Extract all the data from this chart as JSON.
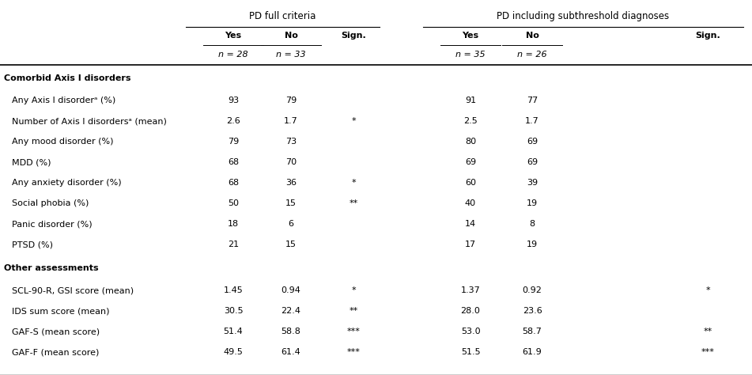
{
  "col_headers": [
    "Yes",
    "No",
    "Sign.",
    "Yes",
    "No",
    "Sign."
  ],
  "col_subheaders": [
    "n = 28",
    "n = 33",
    "",
    "n = 35",
    "n = 26",
    ""
  ],
  "group1_label": "PD full criteria",
  "group2_label": "PD including subthreshold diagnoses",
  "sections": [
    {
      "header": "Comorbid Axis I disorders",
      "rows": [
        {
          "label": "Any Axis I disorderᵃ (%)",
          "vals": [
            "93",
            "79",
            "",
            "91",
            "77",
            ""
          ]
        },
        {
          "label": "Number of Axis I disordersᵃ (mean)",
          "vals": [
            "2.6",
            "1.7",
            "*",
            "2.5",
            "1.7",
            ""
          ]
        },
        {
          "label": "Any mood disorder (%)",
          "vals": [
            "79",
            "73",
            "",
            "80",
            "69",
            ""
          ]
        },
        {
          "label": "MDD (%)",
          "vals": [
            "68",
            "70",
            "",
            "69",
            "69",
            ""
          ]
        },
        {
          "label": "Any anxiety disorder (%)",
          "vals": [
            "68",
            "36",
            "*",
            "60",
            "39",
            ""
          ]
        },
        {
          "label": "Social phobia (%)",
          "vals": [
            "50",
            "15",
            "**",
            "40",
            "19",
            ""
          ]
        },
        {
          "label": "Panic disorder (%)",
          "vals": [
            "18",
            "6",
            "",
            "14",
            "8",
            ""
          ]
        },
        {
          "label": "PTSD (%)",
          "vals": [
            "21",
            "15",
            "",
            "17",
            "19",
            ""
          ]
        }
      ]
    },
    {
      "header": "Other assessments",
      "rows": [
        {
          "label": "SCL-90-R, GSI score (mean)",
          "vals": [
            "1.45",
            "0.94",
            "*",
            "1.37",
            "0.92",
            "*"
          ]
        },
        {
          "label": "IDS sum score (mean)",
          "vals": [
            "30.5",
            "22.4",
            "**",
            "28.0",
            "23.6",
            ""
          ]
        },
        {
          "label": "GAF-S (mean score)",
          "vals": [
            "51.4",
            "58.8",
            "***",
            "53.0",
            "58.7",
            "**"
          ]
        },
        {
          "label": "GAF-F (mean score)",
          "vals": [
            "49.5",
            "61.4",
            "***",
            "51.5",
            "61.9",
            "***"
          ]
        }
      ]
    }
  ],
  "bg_color": "#ffffff",
  "text_color": "#000000",
  "line_color": "#000000",
  "fs": 8.0,
  "hfs": 8.5
}
